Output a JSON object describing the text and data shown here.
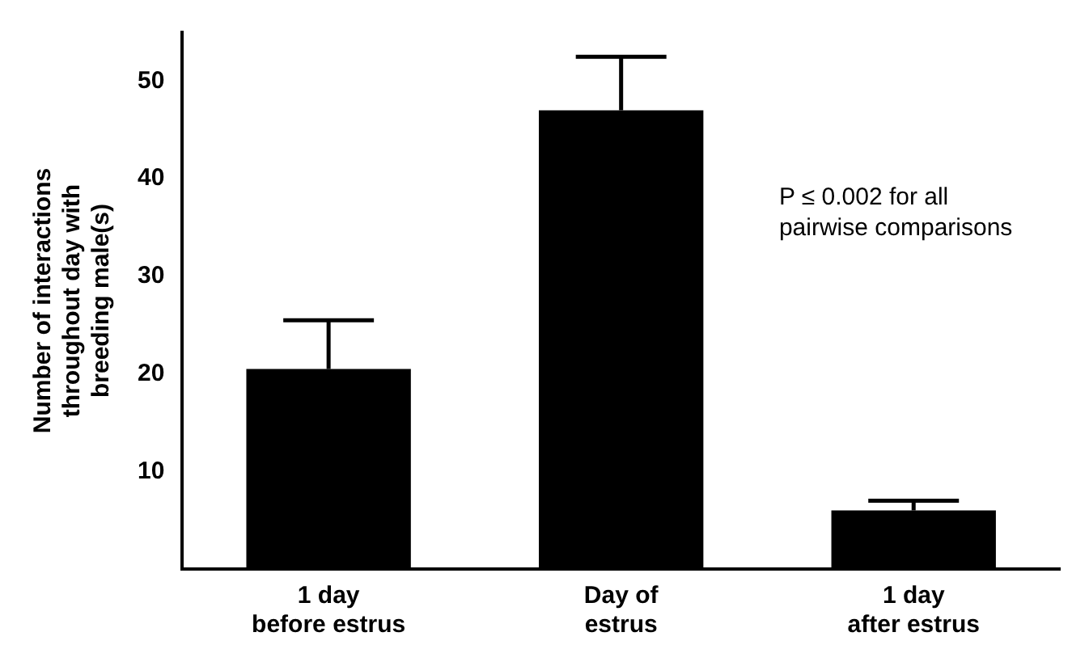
{
  "chart_data": {
    "type": "bar",
    "ylabel": "Number of interactions throughout day with breeding male(s)",
    "categories": [
      "1 day before estrus",
      "Day of estrus",
      "1 day after estrus"
    ],
    "values": [
      20.5,
      47,
      6
    ],
    "errors": [
      [
        20.5,
        25.5
      ],
      [
        47,
        52.5
      ],
      [
        6,
        7
      ]
    ],
    "color": "#000000",
    "ylim": [
      0,
      55
    ],
    "yticks": [
      10,
      20,
      30,
      40,
      50
    ],
    "grid": false,
    "legend": false,
    "annotations": [
      "P ≤ 0.002 for all pairwise comparisons"
    ]
  }
}
